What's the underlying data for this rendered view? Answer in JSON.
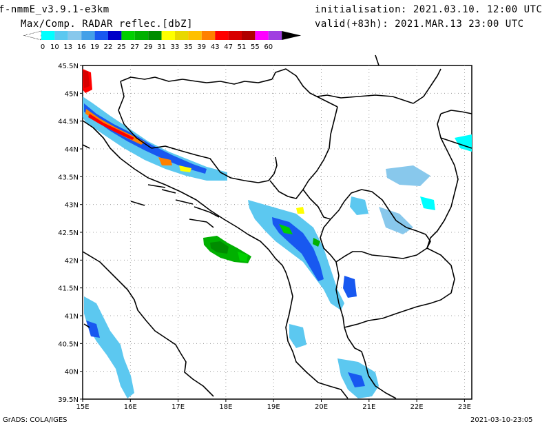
{
  "header": {
    "model": "f-nmmE_v3.9.1-e3km",
    "field": "Max/Comp. RADAR reflec.[dbZ]",
    "init": "initialisation: 2021.03.10. 12:00 UTC",
    "valid": "valid(+83h): 2021.MAR.13 23:00 UTC"
  },
  "colorbar": {
    "labels": [
      "0",
      "10",
      "13",
      "16",
      "19",
      "22",
      "25",
      "27",
      "29",
      "31",
      "33",
      "35",
      "39",
      "43",
      "47",
      "51",
      "55",
      "60"
    ],
    "colors": [
      "#00ffff",
      "#5cc8f0",
      "#88c8ec",
      "#44a0e8",
      "#1858f0",
      "#0000c8",
      "#00d000",
      "#00b000",
      "#008c00",
      "#ffff00",
      "#e8d800",
      "#ffc000",
      "#ff8000",
      "#ff0000",
      "#d80000",
      "#b00000",
      "#ff00ff",
      "#a040e0",
      "#000000"
    ]
  },
  "map": {
    "lat_labels": [
      "45.5N",
      "45N",
      "44.5N",
      "44N",
      "43.5N",
      "43N",
      "42.5N",
      "42N",
      "41.5N",
      "41N",
      "40.5N",
      "40N",
      "39.5N"
    ],
    "lon_labels": [
      "15E",
      "16E",
      "17E",
      "18E",
      "19E",
      "20E",
      "21E",
      "22E",
      "23E"
    ]
  },
  "footer": {
    "left": "GrADS: COLA/IGES",
    "right": "2021-03-10-23:05"
  }
}
